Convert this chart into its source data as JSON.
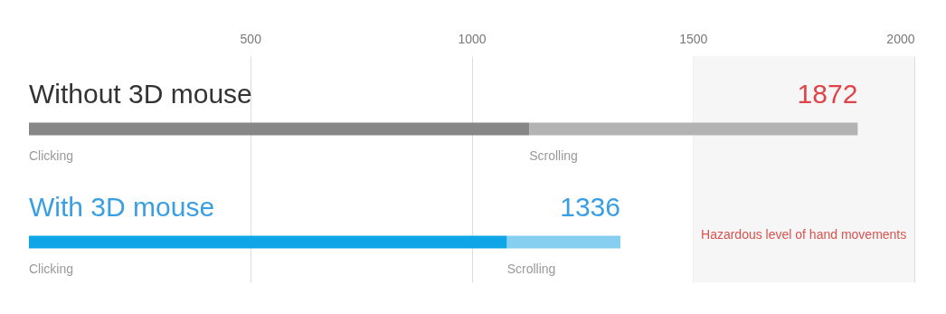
{
  "chart_data": {
    "type": "bar",
    "orientation": "horizontal",
    "stacked": true,
    "categories": [
      "Without 3D mouse",
      "With 3D mouse"
    ],
    "series": [
      {
        "name": "Clicking",
        "colors": [
          "#878787",
          "#0ea6e6"
        ],
        "values": [
          1130,
          1080
        ]
      },
      {
        "name": "Scrolling",
        "colors": [
          "#b3b3b3",
          "#87cff0"
        ],
        "values": [
          742,
          256
        ]
      }
    ],
    "totals": [
      "1872",
      "1336"
    ],
    "xlim": [
      0,
      2000
    ],
    "xticks": [
      500,
      1000,
      1500,
      2000
    ],
    "grid": "x",
    "bands": [
      {
        "axis": "x",
        "from": 1500,
        "to": 2000,
        "label": "Hazardous level of hand movements",
        "color": "#f6f6f6"
      }
    ]
  }
}
